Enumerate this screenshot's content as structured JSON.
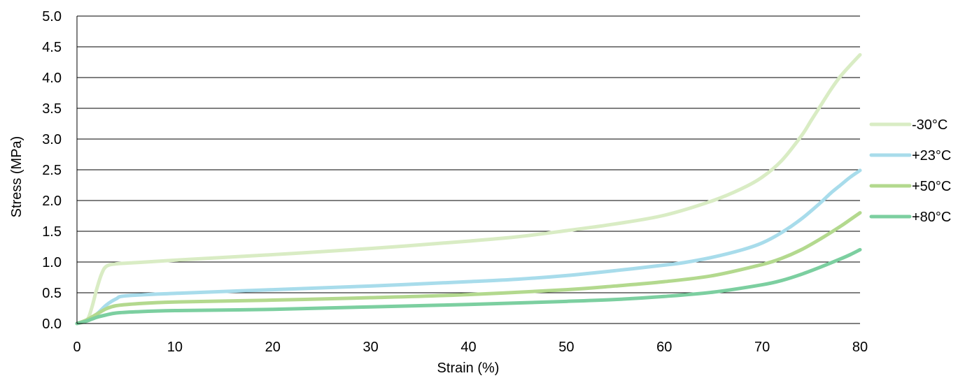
{
  "chart_data": {
    "type": "line",
    "xlabel": "Strain (%)",
    "ylabel": "Stress (MPa)",
    "xlim": [
      0,
      80
    ],
    "ylim": [
      0,
      5
    ],
    "x_ticks": [
      0,
      10,
      20,
      30,
      40,
      50,
      60,
      70,
      80
    ],
    "y_ticks": [
      0,
      0.5,
      1.0,
      1.5,
      2.0,
      2.5,
      3.0,
      3.5,
      4.0,
      4.5,
      5.0
    ],
    "x_tick_labels": [
      "0",
      "10",
      "20",
      "30",
      "40",
      "50",
      "60",
      "70",
      "80"
    ],
    "y_tick_labels": [
      "0.0",
      "0.5",
      "1.0",
      "1.5",
      "2.0",
      "2.5",
      "3.0",
      "3.5",
      "4.0",
      "4.5",
      "5.0"
    ],
    "grid": "horizontal",
    "legend_position": "right",
    "series": [
      {
        "name": "-30°C",
        "color": "#d9ecc4",
        "points": [
          [
            0,
            0
          ],
          [
            1,
            0.05
          ],
          [
            1.5,
            0.25
          ],
          [
            2,
            0.55
          ],
          [
            2.5,
            0.8
          ],
          [
            3,
            0.93
          ],
          [
            4,
            0.97
          ],
          [
            6,
            0.99
          ],
          [
            10,
            1.03
          ],
          [
            20,
            1.12
          ],
          [
            30,
            1.22
          ],
          [
            40,
            1.34
          ],
          [
            45,
            1.41
          ],
          [
            50,
            1.51
          ],
          [
            55,
            1.62
          ],
          [
            60,
            1.76
          ],
          [
            65,
            2.0
          ],
          [
            68,
            2.2
          ],
          [
            70,
            2.38
          ],
          [
            72,
            2.65
          ],
          [
            74,
            3.05
          ],
          [
            75,
            3.3
          ],
          [
            76,
            3.55
          ],
          [
            77,
            3.8
          ],
          [
            78,
            4.02
          ],
          [
            79,
            4.2
          ],
          [
            80,
            4.37
          ]
        ]
      },
      {
        "name": "+23°C",
        "color": "#a8dceb",
        "points": [
          [
            0,
            0
          ],
          [
            1,
            0.05
          ],
          [
            2,
            0.15
          ],
          [
            3,
            0.3
          ],
          [
            4,
            0.4
          ],
          [
            5,
            0.45
          ],
          [
            10,
            0.49
          ],
          [
            20,
            0.55
          ],
          [
            30,
            0.61
          ],
          [
            40,
            0.68
          ],
          [
            45,
            0.72
          ],
          [
            50,
            0.78
          ],
          [
            55,
            0.86
          ],
          [
            60,
            0.95
          ],
          [
            62,
            0.99
          ],
          [
            65,
            1.08
          ],
          [
            68,
            1.2
          ],
          [
            70,
            1.31
          ],
          [
            72,
            1.48
          ],
          [
            74,
            1.7
          ],
          [
            76,
            1.97
          ],
          [
            77,
            2.12
          ],
          [
            78,
            2.25
          ],
          [
            79,
            2.38
          ],
          [
            80,
            2.49
          ]
        ]
      },
      {
        "name": "+50°C",
        "color": "#b3d98e",
        "points": [
          [
            0,
            0
          ],
          [
            1,
            0.06
          ],
          [
            2,
            0.15
          ],
          [
            3,
            0.24
          ],
          [
            4,
            0.29
          ],
          [
            6,
            0.32
          ],
          [
            10,
            0.35
          ],
          [
            20,
            0.38
          ],
          [
            30,
            0.42
          ],
          [
            40,
            0.47
          ],
          [
            50,
            0.55
          ],
          [
            55,
            0.61
          ],
          [
            60,
            0.68
          ],
          [
            65,
            0.78
          ],
          [
            70,
            0.96
          ],
          [
            72,
            1.06
          ],
          [
            74,
            1.2
          ],
          [
            76,
            1.38
          ],
          [
            78,
            1.58
          ],
          [
            79,
            1.69
          ],
          [
            80,
            1.8
          ]
        ]
      },
      {
        "name": "+80°C",
        "color": "#7ccfa0",
        "points": [
          [
            0,
            0
          ],
          [
            1,
            0.04
          ],
          [
            2,
            0.1
          ],
          [
            3,
            0.14
          ],
          [
            4,
            0.17
          ],
          [
            6,
            0.19
          ],
          [
            10,
            0.21
          ],
          [
            20,
            0.23
          ],
          [
            30,
            0.27
          ],
          [
            40,
            0.31
          ],
          [
            50,
            0.36
          ],
          [
            55,
            0.39
          ],
          [
            60,
            0.44
          ],
          [
            65,
            0.51
          ],
          [
            70,
            0.63
          ],
          [
            72,
            0.7
          ],
          [
            74,
            0.8
          ],
          [
            76,
            0.92
          ],
          [
            78,
            1.05
          ],
          [
            79,
            1.12
          ],
          [
            80,
            1.2
          ]
        ]
      }
    ]
  }
}
